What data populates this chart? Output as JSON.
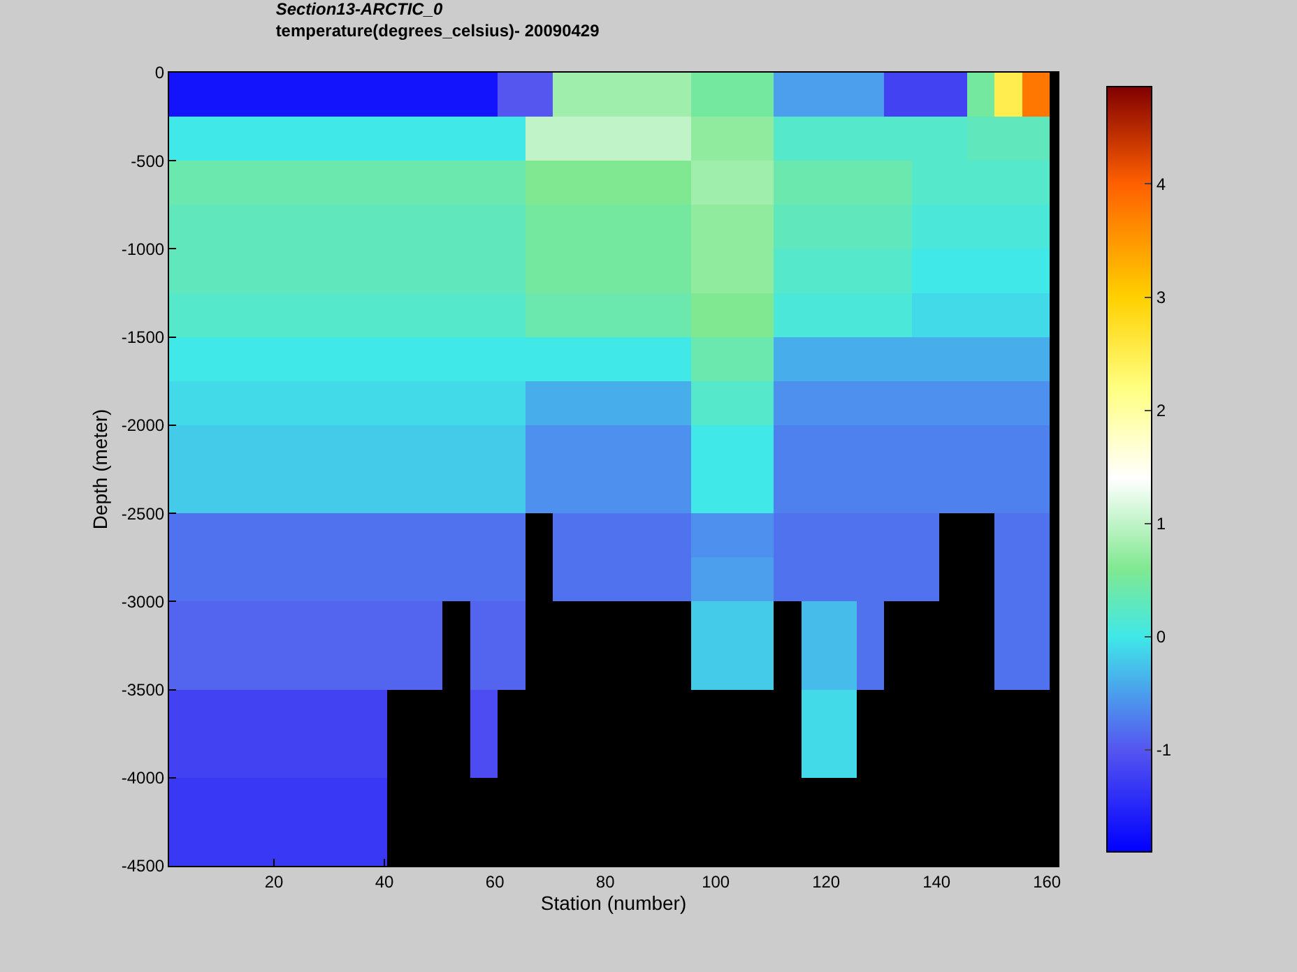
{
  "chart_data": {
    "type": "heatmap",
    "title": "Section13-ARCTIC_0",
    "subtitle": "temperature(degrees_celsius)- 20090429",
    "xlabel": "Station (number)",
    "ylabel": "Depth (meter)",
    "x": [
      3,
      8,
      13,
      18,
      23,
      28,
      33,
      38,
      43,
      48,
      53,
      58,
      63,
      68,
      73,
      78,
      83,
      88,
      93,
      98,
      103,
      108,
      113,
      118,
      123,
      128,
      133,
      138,
      143,
      148,
      153,
      158
    ],
    "y": [
      -125,
      -375,
      -625,
      -875,
      -1125,
      -1375,
      -1625,
      -1875,
      -2125,
      -2375,
      -2625,
      -2875,
      -3125,
      -3375,
      -3625,
      -3875,
      -4125,
      -4375
    ],
    "xlim": [
      1,
      162
    ],
    "xticks": [
      20,
      40,
      60,
      80,
      100,
      120,
      140,
      160
    ],
    "ylim": [
      -4500,
      0
    ],
    "yticks": [
      -4500,
      -4000,
      -3500,
      -3000,
      -2500,
      -2000,
      -1500,
      -1000,
      -500,
      0
    ],
    "clim": [
      -1.9,
      4.86
    ],
    "cticks": [
      -1,
      0,
      1,
      2,
      3,
      4
    ],
    "grid": false,
    "cells": [
      [
        -1.7,
        -1.7,
        -1.7,
        -1.7,
        -1.7,
        -1.7,
        -1.7,
        -1.7,
        -1.7,
        -1.7,
        -1.7,
        -1.7,
        -1.0,
        -1.0,
        0.8,
        0.8,
        0.8,
        0.8,
        0.8,
        0.5,
        0.5,
        0.5,
        -0.5,
        -0.5,
        -0.5,
        -0.5,
        -1.2,
        -1.2,
        -1.2,
        0.5,
        2.5,
        3.8
      ],
      [
        0.0,
        0.0,
        0.0,
        0.0,
        0.0,
        0.0,
        0.0,
        0.0,
        0.0,
        0.0,
        0.0,
        0.0,
        0.0,
        1.0,
        1.0,
        1.0,
        1.0,
        1.0,
        1.0,
        0.7,
        0.7,
        0.7,
        0.2,
        0.2,
        0.2,
        0.2,
        0.2,
        0.2,
        0.2,
        0.3,
        0.3,
        0.3
      ],
      [
        0.4,
        0.4,
        0.4,
        0.4,
        0.4,
        0.4,
        0.4,
        0.4,
        0.4,
        0.4,
        0.4,
        0.4,
        0.4,
        0.6,
        0.6,
        0.6,
        0.6,
        0.6,
        0.6,
        0.8,
        0.8,
        0.8,
        0.4,
        0.4,
        0.4,
        0.4,
        0.4,
        0.2,
        0.2,
        0.2,
        0.2,
        0.2
      ],
      [
        0.3,
        0.3,
        0.3,
        0.3,
        0.3,
        0.3,
        0.3,
        0.3,
        0.3,
        0.3,
        0.3,
        0.3,
        0.3,
        0.5,
        0.5,
        0.5,
        0.5,
        0.5,
        0.5,
        0.7,
        0.7,
        0.7,
        0.3,
        0.3,
        0.3,
        0.3,
        0.3,
        0.1,
        0.1,
        0.1,
        0.1,
        0.1
      ],
      [
        0.3,
        0.3,
        0.3,
        0.3,
        0.3,
        0.3,
        0.3,
        0.3,
        0.3,
        0.3,
        0.3,
        0.3,
        0.3,
        0.5,
        0.5,
        0.5,
        0.5,
        0.5,
        0.5,
        0.7,
        0.7,
        0.7,
        0.2,
        0.2,
        0.2,
        0.2,
        0.2,
        0.0,
        0.0,
        0.0,
        0.0,
        0.0
      ],
      [
        0.2,
        0.2,
        0.2,
        0.2,
        0.2,
        0.2,
        0.2,
        0.2,
        0.2,
        0.2,
        0.2,
        0.2,
        0.2,
        0.4,
        0.4,
        0.4,
        0.4,
        0.4,
        0.4,
        0.6,
        0.6,
        0.6,
        0.1,
        0.1,
        0.1,
        0.1,
        0.1,
        -0.1,
        -0.1,
        -0.1,
        -0.1,
        -0.1
      ],
      [
        0.0,
        0.0,
        0.0,
        0.0,
        0.0,
        0.0,
        0.0,
        0.0,
        0.0,
        0.0,
        0.0,
        0.0,
        0.0,
        0.0,
        0.0,
        0.0,
        0.0,
        0.0,
        0.0,
        0.4,
        0.4,
        0.4,
        -0.4,
        -0.4,
        -0.4,
        -0.4,
        -0.4,
        -0.4,
        -0.4,
        -0.4,
        -0.4,
        -0.4
      ],
      [
        -0.1,
        -0.1,
        -0.1,
        -0.1,
        -0.1,
        -0.1,
        -0.1,
        -0.1,
        -0.1,
        -0.1,
        -0.1,
        -0.1,
        -0.1,
        -0.4,
        -0.4,
        -0.4,
        -0.4,
        -0.4,
        -0.4,
        0.2,
        0.2,
        0.2,
        -0.6,
        -0.6,
        -0.6,
        -0.6,
        -0.6,
        -0.6,
        -0.6,
        -0.6,
        -0.6,
        -0.6
      ],
      [
        -0.2,
        -0.2,
        -0.2,
        -0.2,
        -0.2,
        -0.2,
        -0.2,
        -0.2,
        -0.2,
        -0.2,
        -0.2,
        -0.2,
        -0.2,
        -0.6,
        -0.6,
        -0.6,
        -0.6,
        -0.6,
        -0.6,
        0.0,
        0.0,
        0.0,
        -0.7,
        -0.7,
        -0.7,
        -0.7,
        -0.7,
        -0.7,
        -0.7,
        -0.7,
        -0.7,
        -0.7
      ],
      [
        -0.2,
        -0.2,
        -0.2,
        -0.2,
        -0.2,
        -0.2,
        -0.2,
        -0.2,
        -0.2,
        -0.2,
        -0.2,
        -0.2,
        -0.2,
        -0.6,
        -0.6,
        -0.6,
        -0.6,
        -0.6,
        -0.6,
        0.0,
        0.0,
        0.0,
        -0.7,
        -0.7,
        -0.7,
        -0.7,
        -0.7,
        -0.7,
        -0.7,
        -0.7,
        -0.7,
        -0.7
      ],
      [
        -0.8,
        -0.8,
        -0.8,
        -0.8,
        -0.8,
        -0.8,
        -0.8,
        -0.8,
        -0.8,
        -0.8,
        -0.8,
        -0.8,
        -0.8,
        null,
        -0.8,
        -0.8,
        -0.8,
        -0.8,
        -0.8,
        -0.6,
        -0.6,
        -0.6,
        -0.8,
        -0.8,
        -0.8,
        -0.8,
        -0.8,
        -0.8,
        null,
        null,
        -0.8,
        -0.8
      ],
      [
        -0.8,
        -0.8,
        -0.8,
        -0.8,
        -0.8,
        -0.8,
        -0.8,
        -0.8,
        -0.8,
        -0.8,
        -0.8,
        -0.8,
        -0.8,
        null,
        -0.8,
        -0.8,
        -0.8,
        -0.8,
        -0.8,
        -0.5,
        -0.5,
        -0.5,
        -0.8,
        -0.8,
        -0.8,
        -0.8,
        -0.8,
        -0.8,
        null,
        null,
        -0.8,
        -0.8
      ],
      [
        -0.9,
        -0.9,
        -0.9,
        -0.9,
        -0.9,
        -0.9,
        -0.9,
        -0.9,
        -0.9,
        -0.9,
        null,
        -0.9,
        -0.9,
        null,
        null,
        null,
        null,
        null,
        null,
        -0.2,
        -0.2,
        -0.2,
        null,
        -0.3,
        -0.3,
        -0.8,
        null,
        null,
        null,
        null,
        -0.8,
        -0.8
      ],
      [
        -0.9,
        -0.9,
        -0.9,
        -0.9,
        -0.9,
        -0.9,
        -0.9,
        -0.9,
        -0.9,
        -0.9,
        null,
        -0.9,
        -0.9,
        null,
        null,
        null,
        null,
        null,
        null,
        -0.2,
        -0.2,
        -0.2,
        null,
        -0.3,
        -0.3,
        -0.8,
        null,
        null,
        null,
        null,
        -0.8,
        -0.8
      ],
      [
        -1.2,
        -1.2,
        -1.2,
        -1.2,
        -1.2,
        -1.2,
        -1.2,
        -1.2,
        null,
        null,
        null,
        -1.1,
        null,
        null,
        null,
        null,
        null,
        null,
        null,
        null,
        null,
        null,
        null,
        -0.1,
        -0.1,
        null,
        null,
        null,
        null,
        null,
        null,
        null
      ],
      [
        -1.2,
        -1.2,
        -1.2,
        -1.2,
        -1.2,
        -1.2,
        -1.2,
        -1.2,
        null,
        null,
        null,
        -1.1,
        null,
        null,
        null,
        null,
        null,
        null,
        null,
        null,
        null,
        null,
        null,
        -0.1,
        -0.1,
        null,
        null,
        null,
        null,
        null,
        null,
        null
      ],
      [
        -1.3,
        -1.3,
        -1.3,
        -1.3,
        -1.3,
        -1.3,
        -1.3,
        -1.3,
        null,
        null,
        null,
        null,
        null,
        null,
        null,
        null,
        null,
        null,
        null,
        null,
        null,
        null,
        null,
        null,
        null,
        null,
        null,
        null,
        null,
        null,
        null,
        null
      ],
      [
        -1.3,
        -1.3,
        -1.3,
        -1.3,
        -1.3,
        -1.3,
        -1.3,
        -1.3,
        null,
        null,
        null,
        null,
        null,
        null,
        null,
        null,
        null,
        null,
        null,
        null,
        null,
        null,
        null,
        null,
        null,
        null,
        null,
        null,
        null,
        null,
        null,
        null
      ]
    ]
  }
}
